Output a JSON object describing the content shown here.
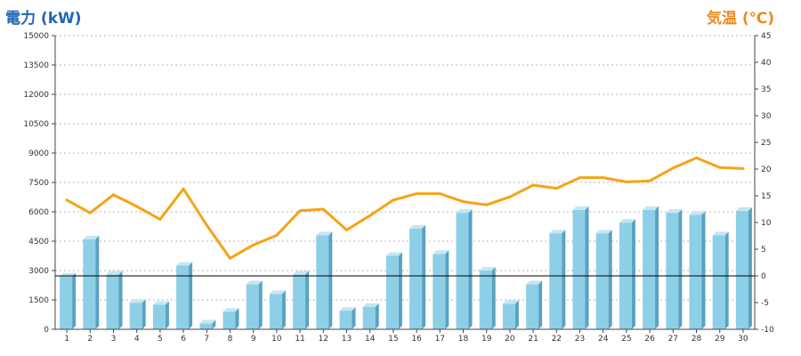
{
  "chart_data": {
    "type": "bar+line",
    "left_axis_title": "電力 (kW)",
    "right_axis_title": "気温 (℃)",
    "categories": [
      "1",
      "2",
      "3",
      "4",
      "5",
      "6",
      "7",
      "8",
      "9",
      "10",
      "11",
      "12",
      "13",
      "14",
      "15",
      "16",
      "17",
      "18",
      "19",
      "20",
      "21",
      "22",
      "23",
      "24",
      "25",
      "26",
      "27",
      "28",
      "29",
      "30"
    ],
    "power_kw": [
      2700,
      4600,
      2800,
      1350,
      1250,
      3250,
      300,
      900,
      2300,
      1800,
      2800,
      4800,
      950,
      1150,
      3750,
      5150,
      3850,
      5950,
      3000,
      1300,
      2300,
      4900,
      6100,
      4900,
      5450,
      6100,
      5950,
      5850,
      4800,
      6050
    ],
    "temperature_c": [
      14.2,
      11.8,
      15.2,
      13.0,
      10.6,
      16.3,
      9.5,
      3.3,
      5.8,
      7.6,
      12.2,
      12.5,
      8.6,
      11.3,
      14.2,
      15.4,
      15.4,
      13.9,
      13.3,
      14.8,
      17.0,
      16.4,
      18.4,
      18.4,
      17.6,
      17.8,
      20.2,
      22.1,
      20.3,
      20.1
    ],
    "left_ylim": [
      0,
      15000
    ],
    "left_ticks": [
      0,
      1500,
      3000,
      4500,
      6000,
      7500,
      9000,
      10500,
      12000,
      13500,
      15000
    ],
    "right_ylim": [
      -10,
      45
    ],
    "right_ticks": [
      -10,
      -5,
      0,
      5,
      10,
      15,
      20,
      25,
      30,
      35,
      40,
      45
    ],
    "grid": true,
    "colors": {
      "bar_front": "#8ecfe8",
      "bar_side": "#5aa2c0",
      "bar_top": "#c4e6f3",
      "line": "#f5a316",
      "left_title": "#1f67b1",
      "right_title": "#ee8a1e"
    }
  }
}
